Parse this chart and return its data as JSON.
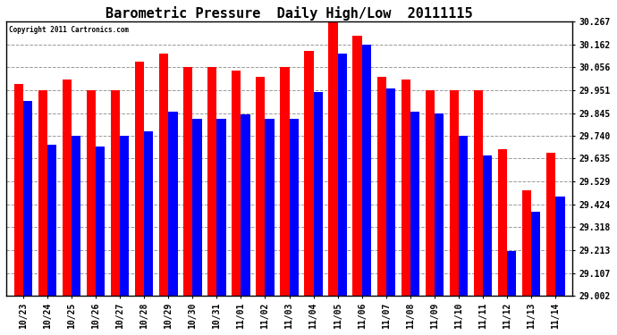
{
  "title": "Barometric Pressure  Daily High/Low  20111115",
  "copyright": "Copyright 2011 Cartronics.com",
  "dates": [
    "10/23",
    "10/24",
    "10/25",
    "10/26",
    "10/27",
    "10/28",
    "10/29",
    "10/30",
    "10/31",
    "11/01",
    "11/02",
    "11/03",
    "11/04",
    "11/05",
    "11/06",
    "11/07",
    "11/08",
    "11/09",
    "11/10",
    "11/11",
    "11/12",
    "11/13",
    "11/14"
  ],
  "highs": [
    29.98,
    29.951,
    30.0,
    29.95,
    29.95,
    30.08,
    30.12,
    30.056,
    30.056,
    30.04,
    30.01,
    30.056,
    30.13,
    30.267,
    30.2,
    30.01,
    30.0,
    29.951,
    29.951,
    29.951,
    29.68,
    29.49,
    29.66
  ],
  "lows": [
    29.9,
    29.7,
    29.74,
    29.69,
    29.74,
    29.76,
    29.85,
    29.82,
    29.82,
    29.84,
    29.82,
    29.82,
    29.94,
    30.12,
    30.162,
    29.96,
    29.85,
    29.845,
    29.74,
    29.65,
    29.21,
    29.39,
    29.46
  ],
  "high_color": "#FF0000",
  "low_color": "#0000FF",
  "background_color": "#FFFFFF",
  "plot_bg_color": "#FFFFFF",
  "grid_color": "#999999",
  "ymin": 29.002,
  "ymax": 30.267,
  "yticks": [
    29.002,
    29.107,
    29.213,
    29.318,
    29.424,
    29.529,
    29.635,
    29.74,
    29.845,
    29.951,
    30.056,
    30.162,
    30.267
  ],
  "title_fontsize": 11,
  "tick_fontsize": 7,
  "bar_width": 0.38
}
